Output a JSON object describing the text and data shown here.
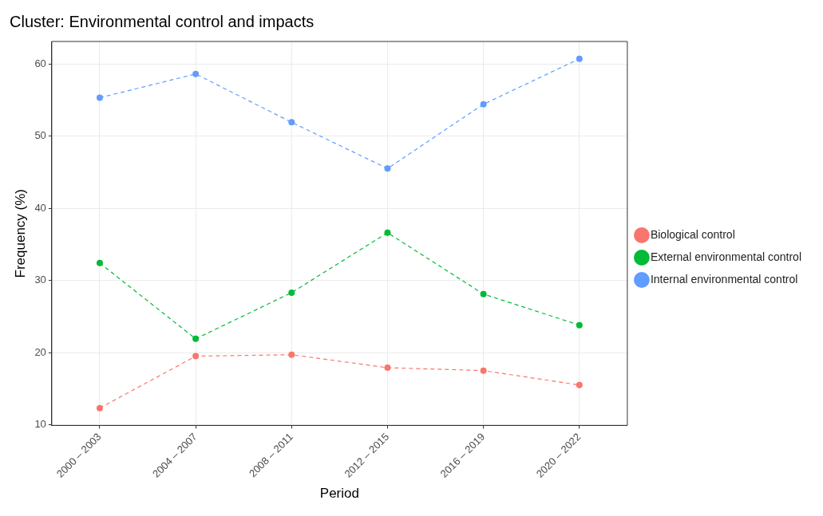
{
  "chart_data": {
    "type": "line",
    "title": "Cluster: Environmental control and impacts",
    "xlabel": "Period",
    "ylabel": "Frequency (%)",
    "categories": [
      "2000 – 2003",
      "2004 – 2007",
      "2008 – 2011",
      "2012 – 2015",
      "2016 – 2019",
      "2020 – 2022"
    ],
    "series": [
      {
        "name": "Biological control",
        "color": "#f8766d",
        "values": [
          12.3,
          19.5,
          19.7,
          17.9,
          17.5,
          15.5
        ]
      },
      {
        "name": "External environmental control",
        "color": "#00ba38",
        "values": [
          32.4,
          21.9,
          28.3,
          36.6,
          28.1,
          23.8
        ]
      },
      {
        "name": "Internal environmental control",
        "color": "#619cff",
        "values": [
          55.3,
          58.6,
          51.9,
          45.5,
          54.4,
          60.7
        ]
      }
    ],
    "ylim": [
      9.9,
      63.1
    ],
    "yticks": [
      10,
      20,
      30,
      40,
      50,
      60
    ],
    "grid": true,
    "legend": "right",
    "marker": "circle",
    "line_style": "dashed"
  }
}
